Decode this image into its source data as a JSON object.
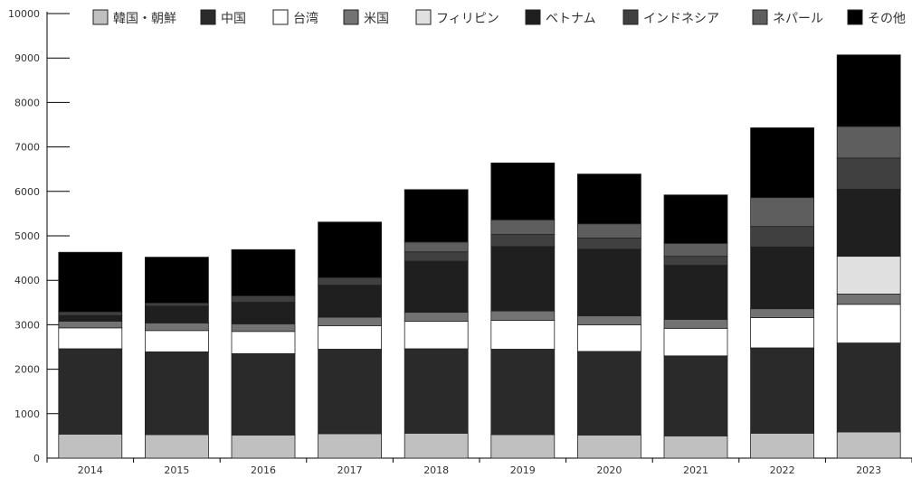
{
  "chart_data": {
    "type": "bar",
    "stacked": true,
    "title": "",
    "xlabel": "",
    "ylabel": "",
    "ylim": [
      0,
      10000
    ],
    "yticks": [
      0,
      1000,
      2000,
      3000,
      4000,
      5000,
      6000,
      7000,
      8000,
      9000,
      10000
    ],
    "grid": false,
    "legend_position": "top",
    "categories": [
      "2014",
      "2015",
      "2016",
      "2017",
      "2018",
      "2019",
      "2020",
      "2021",
      "2022",
      "2023"
    ],
    "series": [
      {
        "name": "韓国・朝鮮",
        "color": "#c0c0c0",
        "values": [
          540,
          530,
          520,
          550,
          560,
          530,
          520,
          500,
          560,
          590
        ]
      },
      {
        "name": "中国",
        "color": "#2a2a2a",
        "values": [
          1920,
          1860,
          1830,
          1900,
          1900,
          1920,
          1880,
          1800,
          1920,
          2000
        ]
      },
      {
        "name": "台湾",
        "color": "#ffffff",
        "values": [
          470,
          480,
          500,
          530,
          620,
          650,
          600,
          620,
          680,
          870
        ]
      },
      {
        "name": "米国",
        "color": "#737373",
        "values": [
          150,
          170,
          170,
          190,
          200,
          210,
          200,
          200,
          200,
          230
        ]
      },
      {
        "name": "フィリピン",
        "color": "#e0e0e0",
        "values": [
          0,
          0,
          0,
          0,
          0,
          0,
          0,
          0,
          0,
          850
        ]
      },
      {
        "name": "ベトナム",
        "color": "#1f1f1f",
        "values": [
          130,
          380,
          490,
          720,
          1150,
          1450,
          1500,
          1220,
          1390,
          1510
        ]
      },
      {
        "name": "インドネシア",
        "color": "#404040",
        "values": [
          80,
          70,
          140,
          170,
          210,
          270,
          250,
          200,
          460,
          700
        ]
      },
      {
        "name": "ネパール",
        "color": "#5e5e5e",
        "values": [
          0,
          0,
          0,
          0,
          220,
          330,
          320,
          290,
          650,
          710
        ]
      },
      {
        "name": "その他",
        "color": "#000000",
        "values": [
          1340,
          1030,
          1040,
          1250,
          1180,
          1280,
          1120,
          1090,
          1570,
          1610
        ]
      }
    ]
  }
}
